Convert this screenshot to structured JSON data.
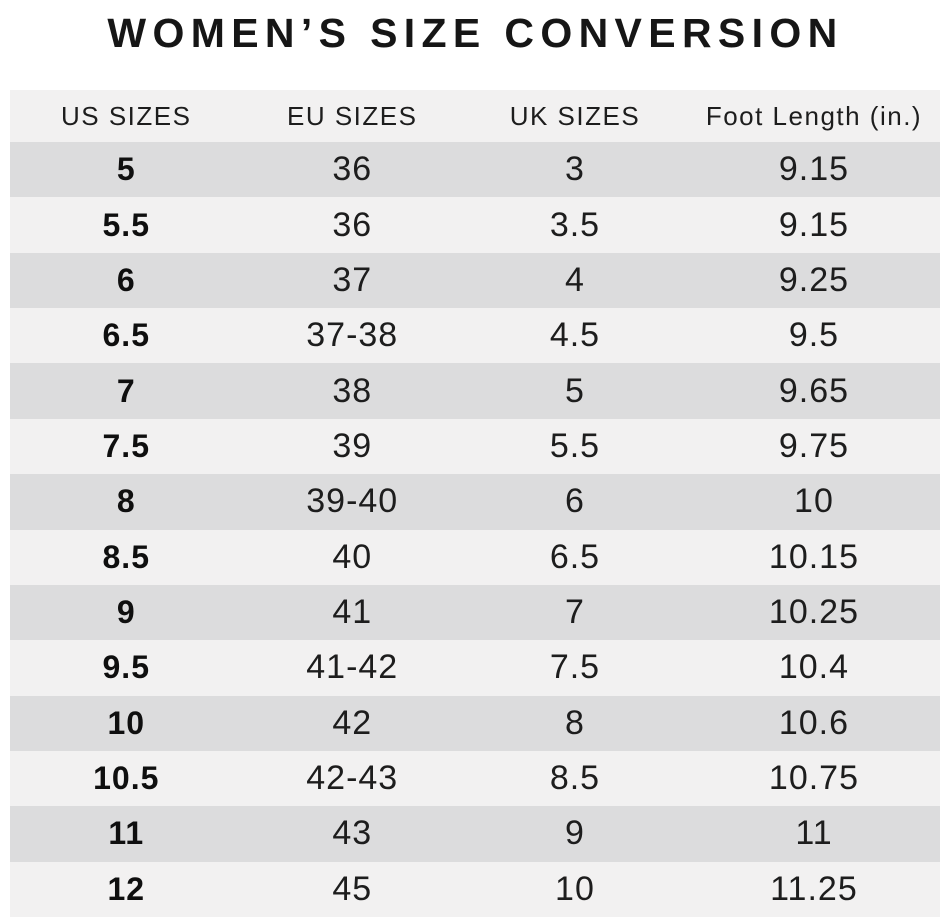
{
  "title": "WOMEN’S SIZE CONVERSION",
  "colors": {
    "page_bg": "#ffffff",
    "header_bg": "#f2f1f1",
    "row_light": "#f2f1f1",
    "row_dark": "#dcdcdd",
    "text": "#1d1d1d",
    "bold_text": "#0f0f0f",
    "title": "#161616"
  },
  "chart_data": {
    "type": "table",
    "title": "WOMEN’S SIZE CONVERSION",
    "columns": [
      "US SIZES",
      "EU SIZES",
      "UK SIZES",
      "Foot Length (in.)"
    ],
    "rows": [
      [
        "5",
        "36",
        "3",
        "9.15"
      ],
      [
        "5.5",
        "36",
        "3.5",
        "9.15"
      ],
      [
        "6",
        "37",
        "4",
        "9.25"
      ],
      [
        "6.5",
        "37-38",
        "4.5",
        "9.5"
      ],
      [
        "7",
        "38",
        "5",
        "9.65"
      ],
      [
        "7.5",
        "39",
        "5.5",
        "9.75"
      ],
      [
        "8",
        "39-40",
        "6",
        "10"
      ],
      [
        "8.5",
        "40",
        "6.5",
        "10.15"
      ],
      [
        "9",
        "41",
        "7",
        "10.25"
      ],
      [
        "9.5",
        "41-42",
        "7.5",
        "10.4"
      ],
      [
        "10",
        "42",
        "8",
        "10.6"
      ],
      [
        "10.5",
        "42-43",
        "8.5",
        "10.75"
      ],
      [
        "11",
        "43",
        "9",
        "11"
      ],
      [
        "12",
        "45",
        "10",
        "11.25"
      ]
    ],
    "layout_hints": {
      "striping": "first data row dark, alternating dark/light",
      "us_column_bold": true,
      "grid": "off",
      "alignment": "center"
    }
  }
}
